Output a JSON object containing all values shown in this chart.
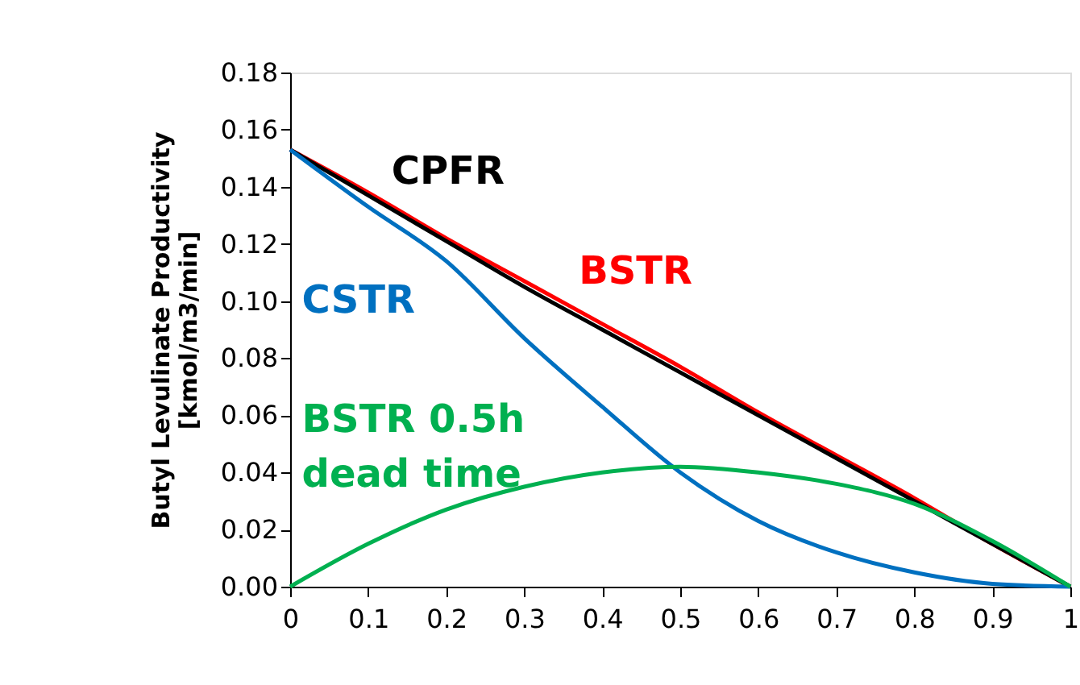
{
  "chart_data": {
    "type": "line",
    "ylabel": "Butyl Levulinate Productivity [kmol/m3/min]",
    "x": [
      0,
      0.1,
      0.2,
      0.3,
      0.4,
      0.5,
      0.6,
      0.7,
      0.8,
      0.9,
      1
    ],
    "series": [
      {
        "name": "BSTR",
        "color": "#ff0000",
        "values": [
          0.153,
          0.138,
          0.122,
          0.107,
          0.092,
          0.077,
          0.061,
          0.046,
          0.031,
          0.015,
          0
        ]
      },
      {
        "name": "CPFR",
        "color": "#000000",
        "values": [
          0.153,
          0.137,
          0.121,
          0.105,
          0.09,
          0.075,
          0.06,
          0.045,
          0.03,
          0.015,
          0
        ]
      },
      {
        "name": "CSTR",
        "color": "#0070c0",
        "values": [
          0.153,
          0.133,
          0.114,
          0.087,
          0.063,
          0.04,
          0.023,
          0.012,
          0.005,
          0.001,
          0
        ]
      },
      {
        "name": "BSTR 0.5h dead time",
        "color": "#00b050",
        "values": [
          0,
          0.015,
          0.027,
          0.035,
          0.04,
          0.042,
          0.04,
          0.036,
          0.029,
          0.016,
          0
        ]
      }
    ],
    "xlim": [
      0,
      1
    ],
    "xticks": [
      0,
      0.1,
      0.2,
      0.3,
      0.4,
      0.5,
      0.6,
      0.7,
      0.8,
      0.9,
      1
    ],
    "ylim": [
      0,
      0.18
    ],
    "yticks": [
      {
        "value": 0,
        "label": "0.00"
      },
      {
        "value": 0.02,
        "label": "0.02"
      },
      {
        "value": 0.04,
        "label": "0.04"
      },
      {
        "value": 0.06,
        "label": "0.06"
      },
      {
        "value": 0.08,
        "label": "0.08"
      },
      {
        "value": 0.1,
        "label": "0.10"
      },
      {
        "value": 0.12,
        "label": "0.12"
      },
      {
        "value": 0.14,
        "label": "0.14"
      },
      {
        "value": 0.16,
        "label": "0.16"
      },
      {
        "value": 0.18,
        "label": "0.18"
      }
    ],
    "grid": false,
    "legend": false,
    "marker": "none",
    "line_style": "solid"
  }
}
